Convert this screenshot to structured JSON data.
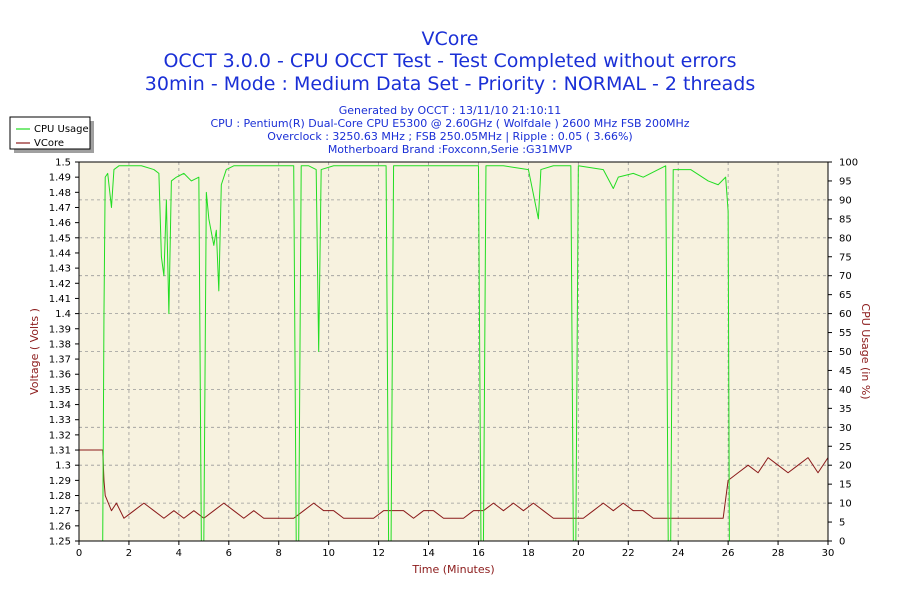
{
  "header": {
    "title": "VCore",
    "subtitle1": "OCCT 3.0.0 - CPU OCCT Test - Test Completed without errors",
    "subtitle2": "30min - Mode : Medium Data Set - Priority : NORMAL - 2 threads"
  },
  "info": {
    "generated": "Generated by OCCT : 13/11/10 21:10:11",
    "cpu": "CPU : Pentium(R) Dual-Core CPU E5300 @ 2.60GHz ( Wolfdale ) 2600 MHz FSB 200MHz",
    "overclock": "Overclock : 3250.63 MHz ; FSB 250.05MHz | Ripple : 0.05 ( 3.66%)",
    "motherboard": "Motherboard Brand :Foxconn,Serie :G31MVP"
  },
  "colors": {
    "cpu_usage": "#22dd22",
    "vcore": "#8b1a1a",
    "plot_bg": "#f7f2df",
    "grid": "#9a9a9a",
    "title": "#1a2fd6"
  },
  "chart_data": {
    "type": "line",
    "xlabel": "Time (Minutes)",
    "ylabel": "Voltage ( Volts )",
    "y2label": "CPU Usage (in %)",
    "xlim": [
      0,
      30
    ],
    "ylim": [
      1.25,
      1.5
    ],
    "y2lim": [
      0,
      100
    ],
    "x_ticks": [
      "0",
      "2",
      "4",
      "6",
      "8",
      "10",
      "12",
      "14",
      "16",
      "18",
      "20",
      "22",
      "24",
      "26",
      "28",
      "30"
    ],
    "y_ticks": [
      "1.25",
      "1.26",
      "1.27",
      "1.28",
      "1.29",
      "1.3",
      "1.31",
      "1.32",
      "1.33",
      "1.34",
      "1.35",
      "1.36",
      "1.37",
      "1.38",
      "1.39",
      "1.4",
      "1.41",
      "1.42",
      "1.43",
      "1.44",
      "1.45",
      "1.46",
      "1.47",
      "1.48",
      "1.49",
      "1.5"
    ],
    "y2_ticks": [
      "0",
      "5",
      "10",
      "15",
      "20",
      "25",
      "30",
      "35",
      "40",
      "45",
      "50",
      "55",
      "60",
      "65",
      "70",
      "75",
      "80",
      "85",
      "90",
      "95",
      "100"
    ],
    "grid": true,
    "legend_position": "top-left",
    "series": [
      {
        "name": "CPU Usage",
        "axis": "right",
        "points": [
          [
            0,
            0
          ],
          [
            0.95,
            0
          ],
          [
            1.0,
            60
          ],
          [
            1.05,
            96
          ],
          [
            1.15,
            97
          ],
          [
            1.3,
            88
          ],
          [
            1.4,
            98
          ],
          [
            1.6,
            99
          ],
          [
            2.0,
            99
          ],
          [
            2.5,
            99
          ],
          [
            3.0,
            98
          ],
          [
            3.2,
            97
          ],
          [
            3.3,
            75
          ],
          [
            3.4,
            70
          ],
          [
            3.5,
            90
          ],
          [
            3.6,
            60
          ],
          [
            3.7,
            95
          ],
          [
            3.9,
            96
          ],
          [
            4.2,
            97
          ],
          [
            4.5,
            95
          ],
          [
            4.8,
            96
          ],
          [
            4.9,
            0
          ],
          [
            5.0,
            0
          ],
          [
            5.1,
            92
          ],
          [
            5.2,
            85
          ],
          [
            5.4,
            78
          ],
          [
            5.5,
            82
          ],
          [
            5.6,
            66
          ],
          [
            5.7,
            94
          ],
          [
            5.9,
            98
          ],
          [
            6.2,
            99
          ],
          [
            7.0,
            99
          ],
          [
            8.0,
            99
          ],
          [
            8.6,
            99
          ],
          [
            8.7,
            0
          ],
          [
            8.8,
            0
          ],
          [
            8.9,
            99
          ],
          [
            9.2,
            99
          ],
          [
            9.5,
            98
          ],
          [
            9.6,
            50
          ],
          [
            9.7,
            98
          ],
          [
            10.2,
            99
          ],
          [
            11.0,
            99
          ],
          [
            12.0,
            99
          ],
          [
            12.3,
            99
          ],
          [
            12.4,
            0
          ],
          [
            12.5,
            0
          ],
          [
            12.6,
            99
          ],
          [
            13.5,
            99
          ],
          [
            14.5,
            99
          ],
          [
            15.5,
            99
          ],
          [
            16.0,
            99
          ],
          [
            16.1,
            0
          ],
          [
            16.2,
            0
          ],
          [
            16.3,
            99
          ],
          [
            17.0,
            99
          ],
          [
            18.0,
            98
          ],
          [
            18.4,
            85
          ],
          [
            18.5,
            98
          ],
          [
            19.0,
            99
          ],
          [
            19.7,
            99
          ],
          [
            19.8,
            0
          ],
          [
            19.9,
            0
          ],
          [
            20.0,
            99
          ],
          [
            21.0,
            98
          ],
          [
            21.4,
            93
          ],
          [
            21.6,
            96
          ],
          [
            22.2,
            97
          ],
          [
            22.6,
            96
          ],
          [
            23.2,
            98
          ],
          [
            23.5,
            99
          ],
          [
            23.6,
            0
          ],
          [
            23.7,
            0
          ],
          [
            23.8,
            98
          ],
          [
            24.5,
            98
          ],
          [
            25.2,
            95
          ],
          [
            25.6,
            94
          ],
          [
            25.9,
            96
          ],
          [
            26.0,
            87
          ],
          [
            26.05,
            0
          ],
          [
            30,
            0
          ]
        ]
      },
      {
        "name": "VCore",
        "axis": "left",
        "points": [
          [
            0,
            1.31
          ],
          [
            0.95,
            1.31
          ],
          [
            1.0,
            1.29
          ],
          [
            1.05,
            1.28
          ],
          [
            1.3,
            1.27
          ],
          [
            1.5,
            1.275
          ],
          [
            1.8,
            1.265
          ],
          [
            2.2,
            1.27
          ],
          [
            2.6,
            1.275
          ],
          [
            3.0,
            1.27
          ],
          [
            3.4,
            1.265
          ],
          [
            3.8,
            1.27
          ],
          [
            4.2,
            1.265
          ],
          [
            4.6,
            1.27
          ],
          [
            5.0,
            1.265
          ],
          [
            5.4,
            1.27
          ],
          [
            5.8,
            1.275
          ],
          [
            6.2,
            1.27
          ],
          [
            6.6,
            1.265
          ],
          [
            7.0,
            1.27
          ],
          [
            7.4,
            1.265
          ],
          [
            7.8,
            1.265
          ],
          [
            8.2,
            1.265
          ],
          [
            8.6,
            1.265
          ],
          [
            9.0,
            1.27
          ],
          [
            9.4,
            1.275
          ],
          [
            9.8,
            1.27
          ],
          [
            10.2,
            1.27
          ],
          [
            10.6,
            1.265
          ],
          [
            11.0,
            1.265
          ],
          [
            11.4,
            1.265
          ],
          [
            11.8,
            1.265
          ],
          [
            12.2,
            1.27
          ],
          [
            12.6,
            1.27
          ],
          [
            13.0,
            1.27
          ],
          [
            13.4,
            1.265
          ],
          [
            13.8,
            1.27
          ],
          [
            14.2,
            1.27
          ],
          [
            14.6,
            1.265
          ],
          [
            15.0,
            1.265
          ],
          [
            15.4,
            1.265
          ],
          [
            15.8,
            1.27
          ],
          [
            16.2,
            1.27
          ],
          [
            16.6,
            1.275
          ],
          [
            17.0,
            1.27
          ],
          [
            17.4,
            1.275
          ],
          [
            17.8,
            1.27
          ],
          [
            18.2,
            1.275
          ],
          [
            18.6,
            1.27
          ],
          [
            19.0,
            1.265
          ],
          [
            19.4,
            1.265
          ],
          [
            19.8,
            1.265
          ],
          [
            20.2,
            1.265
          ],
          [
            20.6,
            1.27
          ],
          [
            21.0,
            1.275
          ],
          [
            21.4,
            1.27
          ],
          [
            21.8,
            1.275
          ],
          [
            22.2,
            1.27
          ],
          [
            22.6,
            1.27
          ],
          [
            23.0,
            1.265
          ],
          [
            23.4,
            1.265
          ],
          [
            23.8,
            1.265
          ],
          [
            24.2,
            1.265
          ],
          [
            24.6,
            1.265
          ],
          [
            25.0,
            1.265
          ],
          [
            25.4,
            1.265
          ],
          [
            25.8,
            1.265
          ],
          [
            26.0,
            1.29
          ],
          [
            26.4,
            1.295
          ],
          [
            26.8,
            1.3
          ],
          [
            27.2,
            1.295
          ],
          [
            27.6,
            1.305
          ],
          [
            28.0,
            1.3
          ],
          [
            28.4,
            1.295
          ],
          [
            28.8,
            1.3
          ],
          [
            29.2,
            1.305
          ],
          [
            29.6,
            1.295
          ],
          [
            30.0,
            1.305
          ]
        ]
      }
    ]
  }
}
